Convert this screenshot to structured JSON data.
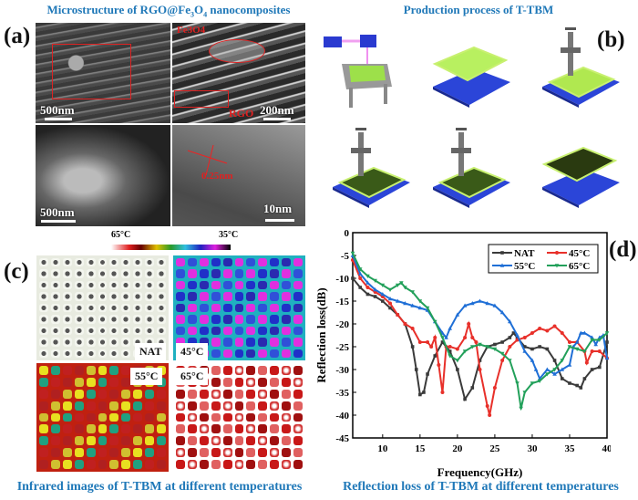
{
  "panel_a": {
    "label": "(a)",
    "title_parts": [
      "Microstructure of RGO@Fe",
      "3",
      "O",
      "4",
      " nanocomposites"
    ],
    "scale_labels": [
      "500nm",
      "200nm",
      "500nm",
      "10nm"
    ],
    "annotations": {
      "fe3o4": "Fe3O4",
      "rgo": "RGO",
      "lattice": "0.25nm"
    }
  },
  "panel_b": {
    "label": "(b)",
    "title": "Production process of T-TBM"
  },
  "panel_c": {
    "label": "(c)",
    "colorbar": {
      "hot": "65°C",
      "cold": "35°C"
    },
    "tags": [
      "NAT",
      "45°C",
      "55°C",
      "65°C"
    ],
    "caption": "Infrared images of T-TBM at different temperatures"
  },
  "panel_d": {
    "label": "(d)",
    "caption": "Reflection loss of T-TBM at different temperatures"
  },
  "chart_data": {
    "type": "line",
    "xlabel": "Frequency(GHz)",
    "ylabel": "Reflection loss(dB)",
    "xlim": [
      6,
      40
    ],
    "ylim": [
      -45,
      0
    ],
    "xticks": [
      10,
      15,
      20,
      25,
      30,
      35,
      40
    ],
    "yticks": [
      0,
      -5,
      -10,
      -15,
      -20,
      -25,
      -30,
      -35,
      -40,
      -45
    ],
    "legend": "top-right",
    "series": [
      {
        "name": "NAT",
        "color": "#3a3a3a",
        "marker": "square",
        "x": [
          6,
          7,
          8,
          9,
          10,
          11,
          12,
          13,
          14,
          14.5,
          15,
          15.5,
          16,
          17,
          18,
          19,
          20,
          21,
          22,
          23,
          24,
          25,
          26,
          27,
          27.5,
          28,
          29,
          30,
          31,
          32,
          33,
          34,
          35,
          36,
          36.5,
          37,
          38,
          39,
          40
        ],
        "y": [
          -10,
          -12,
          -13.5,
          -14,
          -15,
          -16.5,
          -18,
          -20,
          -25,
          -30,
          -35.5,
          -35,
          -31,
          -27,
          -24,
          -26,
          -30,
          -36.5,
          -34,
          -28,
          -25,
          -24.5,
          -24,
          -23,
          -22,
          -23,
          -25,
          -25.5,
          -25,
          -25.5,
          -28,
          -32,
          -33,
          -33.5,
          -34,
          -32,
          -30,
          -29.5,
          -24
        ]
      },
      {
        "name": "45°C",
        "color": "#e8302a",
        "marker": "circle",
        "x": [
          6,
          7,
          8,
          9,
          10,
          11,
          12,
          13,
          14,
          15,
          16,
          16.5,
          17,
          17.5,
          18,
          18.5,
          19,
          20,
          21,
          21.5,
          22,
          22.5,
          23,
          24,
          24.3,
          25,
          26,
          27,
          28,
          29,
          30,
          31,
          32,
          33,
          34,
          35,
          36,
          37,
          37.3,
          38,
          39,
          40
        ],
        "y": [
          -6,
          -10,
          -12,
          -13,
          -14,
          -15.5,
          -18,
          -20,
          -21,
          -24,
          -24,
          -25,
          -23,
          -29,
          -35,
          -25,
          -25,
          -25.5,
          -23,
          -20,
          -23,
          -24,
          -30,
          -38,
          -40,
          -34,
          -28,
          -25,
          -23.5,
          -23,
          -22,
          -21,
          -21.5,
          -20.5,
          -22,
          -24,
          -24,
          -26,
          -28.5,
          -26,
          -26,
          -27.5
        ]
      },
      {
        "name": "55°C",
        "color": "#1f6fd6",
        "marker": "triangle-up",
        "x": [
          6,
          7,
          8,
          9,
          10,
          11,
          12,
          13,
          14,
          15,
          16,
          17,
          18,
          18.5,
          19,
          20,
          21,
          22,
          23,
          24,
          25,
          26,
          27,
          28,
          29,
          30,
          30.5,
          31,
          32,
          33,
          34,
          35,
          35.5,
          36,
          36.5,
          37,
          38,
          38.5,
          39,
          39.5,
          40
        ],
        "y": [
          -5,
          -9,
          -11,
          -12.5,
          -13.5,
          -14.5,
          -15,
          -15.5,
          -16,
          -16.5,
          -17,
          -19.5,
          -22,
          -23,
          -21,
          -18,
          -16,
          -15.5,
          -15,
          -15.5,
          -16,
          -17.5,
          -19.5,
          -22.5,
          -26,
          -28,
          -30,
          -32,
          -30,
          -31,
          -30,
          -29,
          -25,
          -24,
          -22,
          -22,
          -23,
          -24.5,
          -23,
          -22.5,
          -27.5
        ]
      },
      {
        "name": "65°C",
        "color": "#22a05a",
        "marker": "triangle-down",
        "x": [
          6,
          7,
          8,
          9,
          10,
          11,
          12,
          12.5,
          13,
          14,
          15,
          16,
          17,
          18,
          19,
          20,
          21,
          22,
          23,
          24,
          25,
          26,
          27,
          28,
          28.5,
          29,
          30,
          31,
          32,
          33,
          34,
          35,
          36,
          37,
          38,
          39,
          40
        ],
        "y": [
          -4.5,
          -8,
          -9.5,
          -10.5,
          -11.5,
          -12.5,
          -11.5,
          -11,
          -12,
          -13,
          -15,
          -16.5,
          -19.5,
          -23,
          -27,
          -28,
          -26,
          -25,
          -24.5,
          -25,
          -25.5,
          -26.5,
          -28,
          -33,
          -38.5,
          -35,
          -33,
          -32.5,
          -31,
          -30,
          -28,
          -25,
          -25.5,
          -26,
          -23.5,
          -23.5,
          -22
        ]
      }
    ]
  }
}
